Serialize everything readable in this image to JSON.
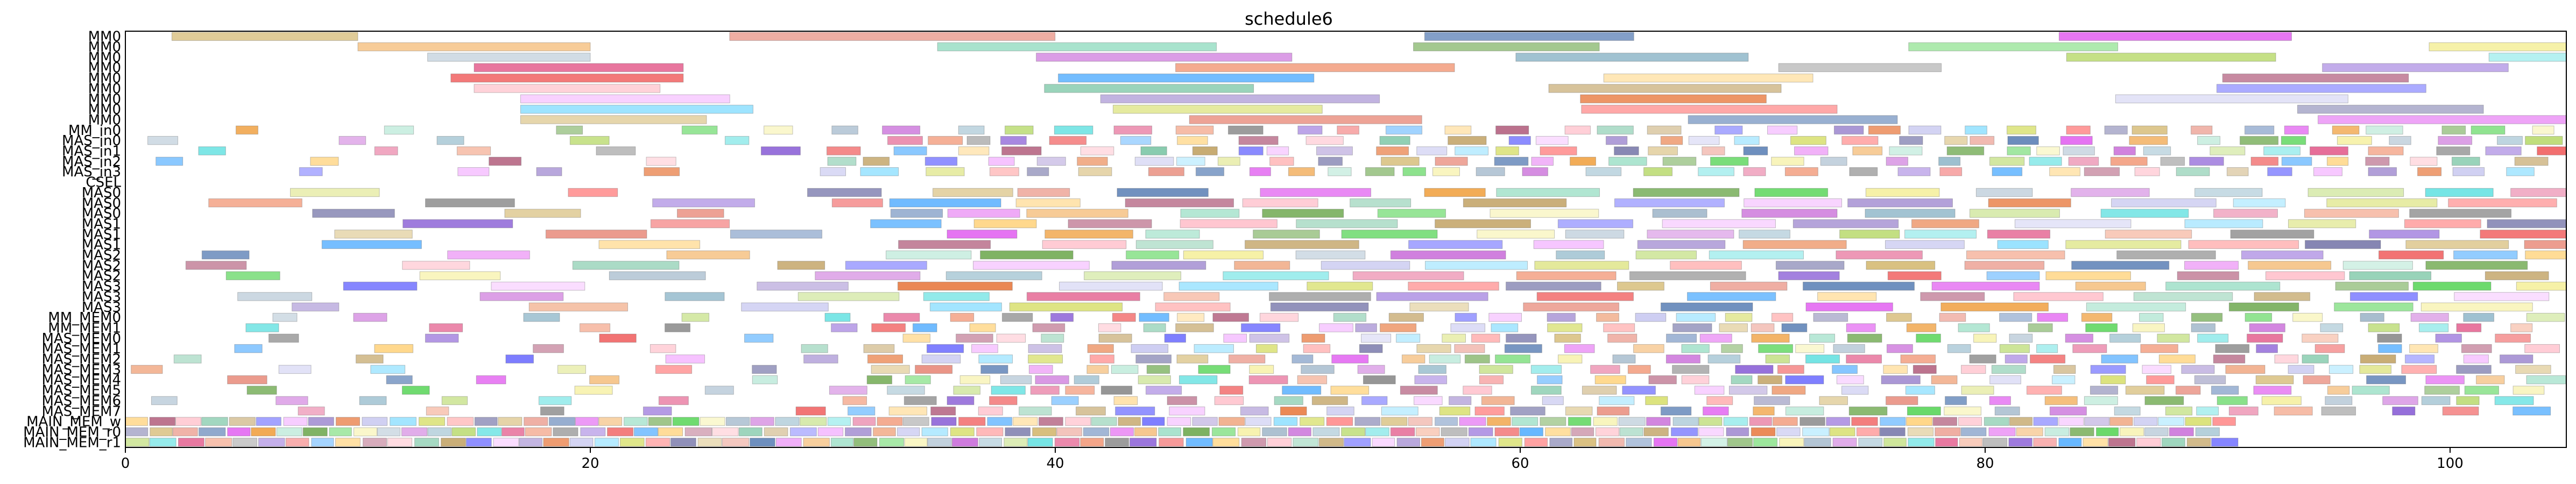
{
  "chart_data": {
    "type": "gantt",
    "title": "schedule6",
    "xlabel": "",
    "ylabel": "",
    "xlim": [
      0,
      105
    ],
    "x_ticks": [
      "0",
      "20",
      "40",
      "60",
      "80",
      "100"
    ],
    "grid": false,
    "legend": "none",
    "rows": [
      "MM0",
      "MM0",
      "MM0",
      "MM0",
      "MM0",
      "MM0",
      "MM0",
      "MM0",
      "MM0",
      "MM_in0",
      "MAS_in0",
      "MAS_in1",
      "MAS_in2",
      "MAS_in3",
      "CSEL",
      "MAS0",
      "MAS0",
      "MAS0",
      "MAS1",
      "MAS1",
      "MAS1",
      "MAS2",
      "MAS2",
      "MAS2",
      "MAS3",
      "MAS3",
      "MAS3",
      "MM_MEM0",
      "MM_MEM1",
      "MAS_MEM0",
      "MAS_MEM1",
      "MAS_MEM2",
      "MAS_MEM3",
      "MAS_MEM4",
      "MAS_MEM5",
      "MAS_MEM6",
      "MAS_MEM7",
      "MAIN_MEM_w",
      "MAIN_MEM_r0",
      "MAIN_MEM_r1"
    ],
    "row_task_seeds": [
      {
        "row": 0,
        "start": 2,
        "durations": [
          8,
          14,
          9,
          10,
          8,
          7
        ]
      },
      {
        "row": 1,
        "start": 10,
        "durations": [
          10,
          12,
          8,
          9,
          7,
          8
        ]
      },
      {
        "row": 2,
        "start": 13,
        "durations": [
          7,
          11,
          10,
          9,
          8,
          6
        ]
      },
      {
        "row": 3,
        "start": 15,
        "durations": [
          9,
          12,
          7,
          8,
          9,
          6
        ]
      },
      {
        "row": 4,
        "start": 14,
        "durations": [
          10,
          11,
          9,
          8,
          10,
          7
        ]
      },
      {
        "row": 5,
        "start": 15,
        "durations": [
          8,
          9,
          10,
          9,
          8,
          8
        ]
      },
      {
        "row": 6,
        "start": 17,
        "durations": [
          9,
          12,
          8,
          10,
          7,
          9
        ]
      },
      {
        "row": 7,
        "start": 17,
        "durations": [
          10,
          9,
          11,
          8,
          9,
          7
        ]
      },
      {
        "row": 8,
        "start": 17,
        "durations": [
          8,
          10,
          9,
          11,
          8,
          6
        ]
      }
    ],
    "task_colors": [
      "#d4b870",
      "#e88a7a",
      "#5a7fb5",
      "#e15cf0",
      "#f0a040",
      "#9fe0c8",
      "#6aa64a",
      "#55d455",
      "#f5ef9b",
      "#9fb6c9",
      "#c96dd9",
      "#8fb7c9",
      "#b7d96a",
      "#5ee0e0",
      "#e35c8c",
      "#f29a7a",
      "#8b8b8b",
      "#8a5fd6",
      "#f05a5a",
      "#58b0ff",
      "#ffd27a",
      "#b05a7a",
      "#ffc0cb",
      "#7cc7a6",
      "#c0a060",
      "#6a6aff",
      "#f4b8ff",
      "#a08ad0",
      "#e87a40",
      "#c8c8f0",
      "#90e0ff",
      "#d8e070",
      "#ff8888",
      "#7777aa"
    ]
  }
}
